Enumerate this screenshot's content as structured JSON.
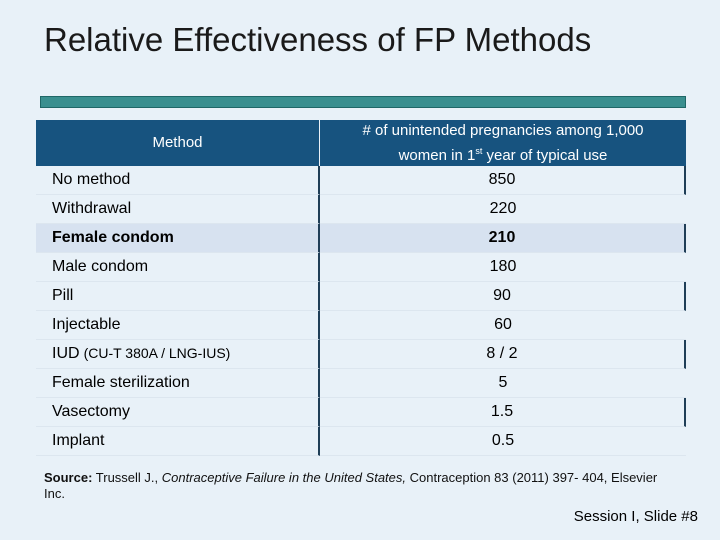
{
  "slide": {
    "title": "Relative Effectiveness of FP Methods",
    "slide_number": "Session I, Slide #8"
  },
  "table": {
    "headers": {
      "method": "Method",
      "rate_pre": "# of unintended pregnancies among 1,000 women in 1",
      "rate_sup": "st",
      "rate_post": " year of typical use"
    },
    "rows": [
      {
        "method": "No method",
        "sub": "",
        "value": "850"
      },
      {
        "method": "Withdrawal",
        "sub": "",
        "value": "220"
      },
      {
        "method": "Female condom",
        "sub": "",
        "value": "210"
      },
      {
        "method": "Male condom",
        "sub": "",
        "value": "180"
      },
      {
        "method": "Pill",
        "sub": "",
        "value": "90"
      },
      {
        "method": "Injectable",
        "sub": "",
        "value": "60"
      },
      {
        "method": "IUD",
        "sub": "(CU-T 380A / LNG-IUS)",
        "value": "8 / 2"
      },
      {
        "method": "Female sterilization",
        "sub": "",
        "value": "5"
      },
      {
        "method": "Vasectomy",
        "sub": "",
        "value": "1.5"
      },
      {
        "method": "Implant",
        "sub": "",
        "value": "0.5"
      }
    ],
    "highlighted_row": "Female condom"
  },
  "source": {
    "label": "Source:",
    "authors": " Trussell J., ",
    "work": "Contraceptive Failure in the United States,",
    "rest": " Contraception 83 (2011) 397- 404, Elsevier Inc."
  },
  "colors": {
    "header_bg": "#17537f",
    "title_bar": "#3a8f8f",
    "highlight": "#d7e2f0",
    "background": "#e8f1f8"
  }
}
